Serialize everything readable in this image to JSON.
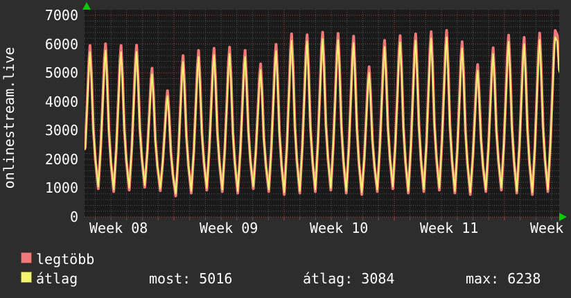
{
  "meta": {
    "ylabel": "onlinestream.live"
  },
  "colors": {
    "background": "#2d2d2d",
    "plot_background": "#1a1a1a",
    "grid_minor": "#555555",
    "grid_major": "#b04040",
    "text": "#ffffff",
    "arrow": "#00cc00",
    "series_max": "#f07878",
    "series_avg": "#f4f470"
  },
  "y_axis": {
    "ticks": [
      "7000",
      "6000",
      "5000",
      "4000",
      "3000",
      "2000",
      "1000",
      "0"
    ]
  },
  "x_axis": {
    "labels": [
      "Week 08",
      "Week 09",
      "Week 10",
      "Week 11",
      "Week"
    ]
  },
  "legend": {
    "items": [
      {
        "label": "legtöbb",
        "color": "#f07878"
      },
      {
        "label": "átlag",
        "color": "#f4f470"
      }
    ],
    "stats": [
      {
        "text": "most: 5016"
      },
      {
        "text": "átlag: 3084"
      },
      {
        "text": "max: 6238"
      }
    ]
  },
  "chart_data": {
    "type": "line",
    "title": "onlinestream.live",
    "ylim": [
      0,
      7200
    ],
    "y_tick_step": 1000,
    "y_minor_step": 200,
    "x_tick_labels": [
      "Week 08",
      "Week 09",
      "Week 10",
      "Week 11",
      "Week"
    ],
    "x_unit": "days",
    "days_shown": 30.16,
    "first_peak_day": 0.35,
    "peak_spacing_days": 0.985,
    "trough_offset_days": 0.52,
    "legend_position": "bottom",
    "grid": true,
    "series": [
      {
        "name": "legtöbb",
        "color": "#f07878",
        "daily_peaks": [
          5950,
          6010,
          5950,
          5960,
          5160,
          4380,
          5600,
          5780,
          5850,
          5890,
          5780,
          5310,
          5990,
          6350,
          6320,
          6410,
          6370,
          6270,
          5210,
          6130,
          6290,
          6350,
          6430,
          6470,
          6080,
          5290,
          5870,
          6310,
          6230,
          6380,
          6470
        ],
        "daily_troughs": [
          980,
          880,
          930,
          1030,
          910,
          730,
          830,
          930,
          880,
          830,
          980,
          880,
          780,
          830,
          880,
          930,
          830,
          780,
          880,
          980,
          830,
          880,
          930,
          830,
          780,
          880,
          930,
          830,
          780,
          880
        ],
        "start_trough": 930,
        "end_value": 5080
      },
      {
        "name": "átlag",
        "color": "#f4f470",
        "daily_peaks": [
          5720,
          5780,
          5720,
          5730,
          4950,
          4200,
          5380,
          5560,
          5620,
          5660,
          5560,
          5100,
          5760,
          6120,
          6090,
          6180,
          6140,
          6040,
          5000,
          5900,
          6060,
          6120,
          6200,
          6238,
          5850,
          5080,
          5650,
          6080,
          6000,
          6150,
          6238
        ],
        "daily_troughs": [
          1050,
          950,
          1000,
          1100,
          980,
          800,
          900,
          1000,
          950,
          900,
          1050,
          950,
          850,
          900,
          950,
          1000,
          900,
          850,
          950,
          1050,
          900,
          950,
          1000,
          900,
          850,
          950,
          1000,
          900,
          850,
          950
        ],
        "start_trough": 1000,
        "end_value": 5016
      }
    ],
    "stats": {
      "most": 5016,
      "atlag": 3084,
      "max": 6238
    }
  }
}
